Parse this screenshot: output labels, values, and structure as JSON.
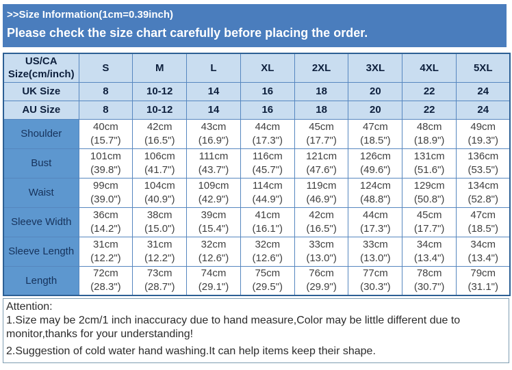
{
  "header": {
    "title": ">>Size Information(1cm=0.39inch)",
    "subtitle": "Please check the size chart carefully before placing the order."
  },
  "table": {
    "corner_line1": "US/CA",
    "corner_line2": "Size(cm/inch)",
    "size_columns": [
      "S",
      "M",
      "L",
      "XL",
      "2XL",
      "3XL",
      "4XL",
      "5XL"
    ],
    "rows": [
      {
        "kind": "size",
        "label": "UK Size",
        "cells": [
          "8",
          "10-12",
          "14",
          "16",
          "18",
          "20",
          "22",
          "24"
        ]
      },
      {
        "kind": "size",
        "label": "AU Size",
        "cells": [
          "8",
          "10-12",
          "14",
          "16",
          "18",
          "20",
          "22",
          "24"
        ]
      },
      {
        "kind": "measure",
        "label": "Shoulder",
        "cells": [
          {
            "cm": "40cm",
            "inch": "(15.7\")"
          },
          {
            "cm": "42cm",
            "inch": "(16.5\")"
          },
          {
            "cm": "43cm",
            "inch": "(16.9\")"
          },
          {
            "cm": "44cm",
            "inch": "(17.3\")"
          },
          {
            "cm": "45cm",
            "inch": "(17.7\")"
          },
          {
            "cm": "47cm",
            "inch": "(18.5\")"
          },
          {
            "cm": "48cm",
            "inch": "(18.9\")"
          },
          {
            "cm": "49cm",
            "inch": "(19.3\")"
          }
        ]
      },
      {
        "kind": "measure",
        "label": "Bust",
        "cells": [
          {
            "cm": "101cm",
            "inch": "(39.8\")"
          },
          {
            "cm": "106cm",
            "inch": "(41.7\")"
          },
          {
            "cm": "111cm",
            "inch": "(43.7\")"
          },
          {
            "cm": "116cm",
            "inch": "(45.7\")"
          },
          {
            "cm": "121cm",
            "inch": "(47.6\")"
          },
          {
            "cm": "126cm",
            "inch": "(49.6\")"
          },
          {
            "cm": "131cm",
            "inch": "(51.6\")"
          },
          {
            "cm": "136cm",
            "inch": "(53.5\")"
          }
        ]
      },
      {
        "kind": "measure",
        "label": "Waist",
        "cells": [
          {
            "cm": "99cm",
            "inch": "(39.0\")"
          },
          {
            "cm": "104cm",
            "inch": "(40.9\")"
          },
          {
            "cm": "109cm",
            "inch": "(42.9\")"
          },
          {
            "cm": "114cm",
            "inch": "(44.9\")"
          },
          {
            "cm": "119cm",
            "inch": "(46.9\")"
          },
          {
            "cm": "124cm",
            "inch": "(48.8\")"
          },
          {
            "cm": "129cm",
            "inch": "(50.8\")"
          },
          {
            "cm": "134cm",
            "inch": "(52.8\")"
          }
        ]
      },
      {
        "kind": "measure",
        "label": "Sleeve Width",
        "cells": [
          {
            "cm": "36cm",
            "inch": "(14.2\")"
          },
          {
            "cm": "38cm",
            "inch": "(15.0\")"
          },
          {
            "cm": "39cm",
            "inch": "(15.4\")"
          },
          {
            "cm": "41cm",
            "inch": "(16.1\")"
          },
          {
            "cm": "42cm",
            "inch": "(16.5\")"
          },
          {
            "cm": "44cm",
            "inch": "(17.3\")"
          },
          {
            "cm": "45cm",
            "inch": "(17.7\")"
          },
          {
            "cm": "47cm",
            "inch": "(18.5\")"
          }
        ]
      },
      {
        "kind": "measure",
        "label": "Sleeve Length",
        "cells": [
          {
            "cm": "31cm",
            "inch": "(12.2\")"
          },
          {
            "cm": "31cm",
            "inch": "(12.2\")"
          },
          {
            "cm": "32cm",
            "inch": "(12.6\")"
          },
          {
            "cm": "32cm",
            "inch": "(12.6\")"
          },
          {
            "cm": "33cm",
            "inch": "(13.0\")"
          },
          {
            "cm": "33cm",
            "inch": "(13.0\")"
          },
          {
            "cm": "34cm",
            "inch": "(13.4\")"
          },
          {
            "cm": "34cm",
            "inch": "(13.4\")"
          }
        ]
      },
      {
        "kind": "measure",
        "label": "Length",
        "cells": [
          {
            "cm": "72cm",
            "inch": "(28.3\")"
          },
          {
            "cm": "73cm",
            "inch": "(28.7\")"
          },
          {
            "cm": "74cm",
            "inch": "(29.1\")"
          },
          {
            "cm": "75cm",
            "inch": "(29.5\")"
          },
          {
            "cm": "76cm",
            "inch": "(29.9\")"
          },
          {
            "cm": "77cm",
            "inch": "(30.3\")"
          },
          {
            "cm": "78cm",
            "inch": "(30.7\")"
          },
          {
            "cm": "79cm",
            "inch": "(31.1\")"
          }
        ]
      }
    ]
  },
  "attention": {
    "title": "Attention:",
    "note1": "1.Size may be 2cm/1 inch inaccuracy due to hand measure,Color may be little different due to monitor,thanks for your understanding!",
    "note2": "2.Suggestion of cold water hand washing.It can help items keep their shape."
  },
  "colors": {
    "band_blue": "#4a7dbd",
    "light_blue": "#c9ddf0",
    "label_blue": "#5d97cf",
    "grid_border": "#5586bf",
    "attention_border": "#7d9cb0"
  }
}
